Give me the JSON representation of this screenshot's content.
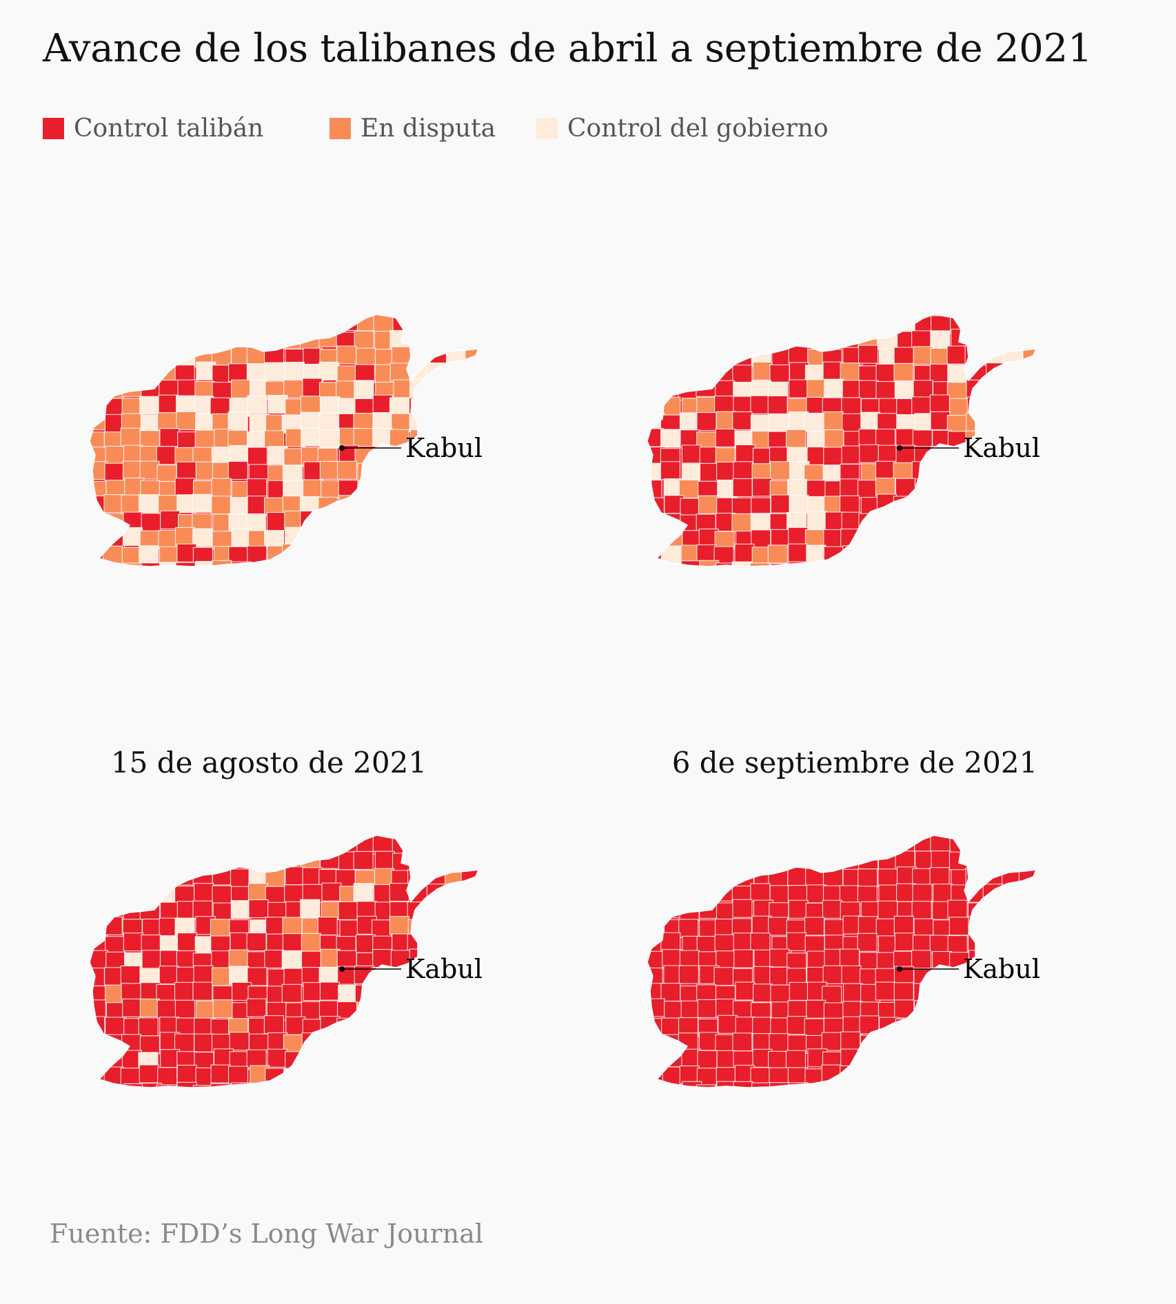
{
  "title": "Avance de los talibanes de abril a septiembre de 2021",
  "legend": [
    {
      "label": "Control talibán",
      "color": "#e81e2b"
    },
    {
      "label": "En disputa",
      "color": "#f98b57"
    },
    {
      "label": "Control del gobierno",
      "color": "#fdebdc"
    }
  ],
  "panels": [
    {
      "label": "",
      "city_label": "Kabul",
      "taliban_share": 0.25,
      "disputed_share": 0.45,
      "government_share": 0.3
    },
    {
      "label": "",
      "city_label": "Kabul",
      "taliban_share": 0.65,
      "disputed_share": 0.15,
      "government_share": 0.2
    },
    {
      "label": "15 de agosto de 2021",
      "city_label": "Kabul",
      "taliban_share": 0.82,
      "disputed_share": 0.1,
      "government_share": 0.08
    },
    {
      "label": "6 de septiembre de 2021",
      "city_label": "Kabul",
      "taliban_share": 1.0,
      "disputed_share": 0.0,
      "government_share": 0.0
    }
  ],
  "source": "Fuente: FDD’s Long War Journal"
}
